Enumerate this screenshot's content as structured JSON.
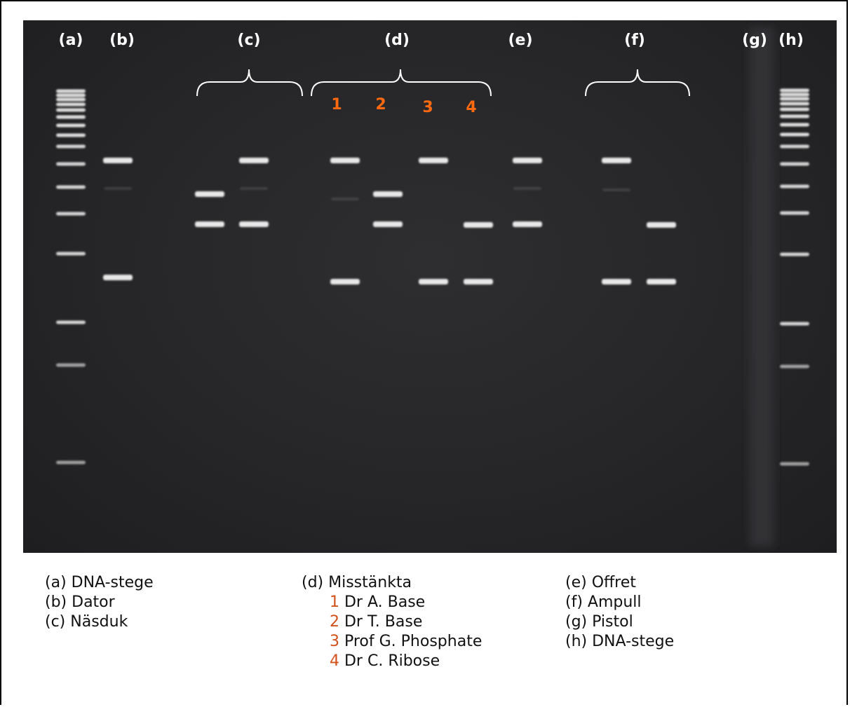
{
  "lanes": {
    "a": "(a)",
    "b": "(b)",
    "c": "(c)",
    "d": "(d)",
    "e": "(e)",
    "f": "(f)",
    "g": "(g)",
    "h": "(h)"
  },
  "suspect_numbers": [
    "1",
    "2",
    "3",
    "4"
  ],
  "legend": {
    "a": "(a) DNA-stege",
    "b": "(b) Dator",
    "c": "(c) Näsduk",
    "d": "(d) Misstänkta",
    "d1_num": "1",
    "d1": " Dr A. Base",
    "d2_num": "2",
    "d2": " Dr T. Base",
    "d3_num": "3",
    "d3": " Prof G. Phosphate",
    "d4_num": "4",
    "d4": " Dr C. Ribose",
    "e": "(e) Offret",
    "f": "(f) Ampull",
    "g": "(g) Pistol",
    "h": "(h) DNA-stege"
  },
  "colors": {
    "gel_background": "#262628",
    "band": "#f2f2f2",
    "suspect_number": "#ff6a10",
    "legend_number": "#d2501a"
  }
}
